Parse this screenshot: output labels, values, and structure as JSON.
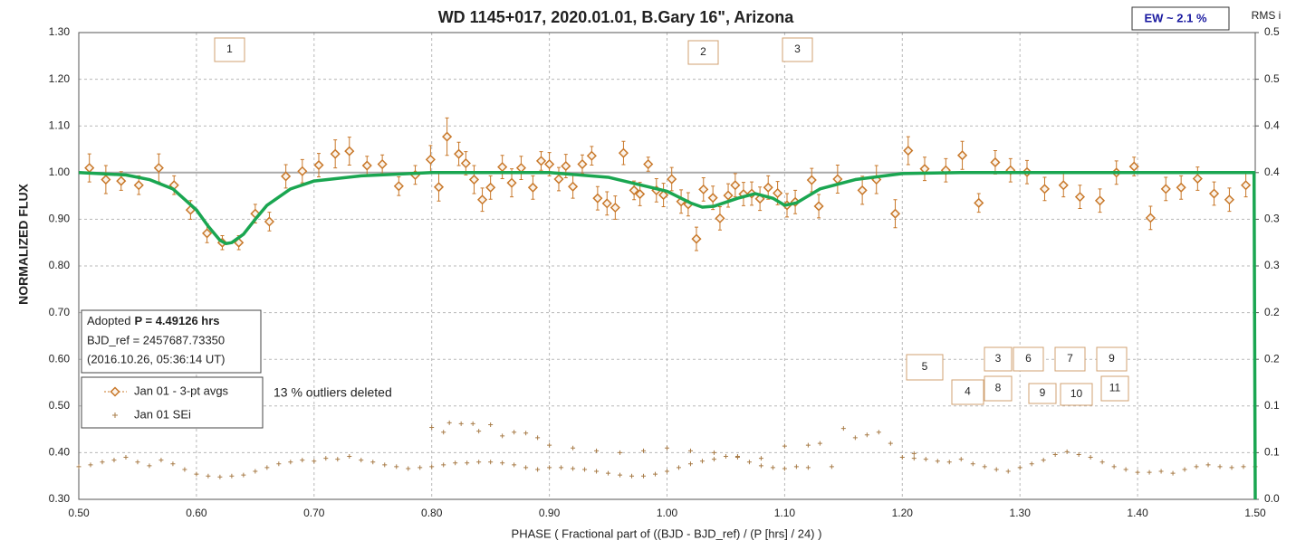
{
  "chart_data": {
    "type": "scatter",
    "title": "WD 1145+017, 2020.01.01, B.Gary 16\", Arizona",
    "x_label": "PHASE ( Fractional part of ((BJD - BJD_ref) / (P [hrs] / 24) )",
    "y_label": "NORMALIZED FLUX",
    "y2_label": "RMS i",
    "ew_label": "EW ~ 2.1 %",
    "info": {
      "prefix": "Adopted",
      "bold": "P = 4.49126 hrs",
      "line2": "BJD_ref = 2457687.73350",
      "line3": "(2016.10.26, 05:36:14 UT)"
    },
    "note": "13 % outliers deleted",
    "annotations": [
      "1",
      "2",
      "3",
      "5",
      "3",
      "6",
      "7",
      "9",
      "4",
      "8",
      "9",
      "10",
      "11"
    ],
    "xlim": [
      0.5,
      1.5
    ],
    "xticks": [
      {
        "value": 0.5,
        "label": "0.50"
      },
      {
        "value": 0.6,
        "label": "0.60"
      },
      {
        "value": 0.7,
        "label": "0.70"
      },
      {
        "value": 0.8,
        "label": "0.80"
      },
      {
        "value": 0.9,
        "label": "0.90"
      },
      {
        "value": 1.0,
        "label": "1.00"
      },
      {
        "value": 1.1,
        "label": "1.10"
      },
      {
        "value": 1.2,
        "label": "1.20"
      },
      {
        "value": 1.3,
        "label": "1.30"
      },
      {
        "value": 1.4,
        "label": "1.40"
      },
      {
        "value": 1.5,
        "label": "1.50"
      }
    ],
    "ylim": [
      0.3,
      1.3
    ],
    "yticks": [
      {
        "value": 0.3,
        "label": "0.30"
      },
      {
        "value": 0.4,
        "label": "0.40"
      },
      {
        "value": 0.5,
        "label": "0.50"
      },
      {
        "value": 0.6,
        "label": "0.60"
      },
      {
        "value": 0.7,
        "label": "0.70"
      },
      {
        "value": 0.8,
        "label": "0.80"
      },
      {
        "value": 0.9,
        "label": "0.90"
      },
      {
        "value": 1.0,
        "label": "1.00"
      },
      {
        "value": 1.1,
        "label": "1.10"
      },
      {
        "value": 1.2,
        "label": "1.20"
      },
      {
        "value": 1.3,
        "label": "1.30"
      }
    ],
    "y2lim": [
      0,
      0.5
    ],
    "y2ticks": [
      {
        "value": 0,
        "label": "0.0"
      },
      {
        "value": 0.05,
        "label": "0.1"
      },
      0.1,
      {
        "value": 0.15,
        "label": "0.2"
      },
      0.2,
      {
        "value": 0.25,
        "label": "0.3"
      },
      0.3,
      {
        "value": 0.35,
        "label": "0.4"
      },
      0.4,
      {
        "value": 0.45,
        "label": "0.5"
      },
      0.5
    ],
    "grid": true,
    "reference_y": 1.0,
    "series": [
      {
        "name": "Jan 01 - 3-pt avgs",
        "color": "#c8782a",
        "marker": "diamond",
        "x": [
          0.509,
          0.523,
          0.536,
          0.551,
          0.568,
          0.581,
          0.595,
          0.609,
          0.622,
          0.636,
          0.65,
          0.662,
          0.676,
          0.69,
          0.704,
          0.718,
          0.73,
          0.745,
          0.758,
          0.772,
          0.786,
          0.799,
          0.806,
          0.813,
          0.823,
          0.829,
          0.836,
          0.843,
          0.85,
          0.86,
          0.868,
          0.876,
          0.886,
          0.893,
          0.9,
          0.908,
          0.914,
          0.92,
          0.928,
          0.936,
          0.941,
          0.949,
          0.956,
          0.963,
          0.972,
          0.977,
          0.984,
          0.991,
          0.997,
          1.004,
          1.012,
          1.018,
          1.025,
          1.031,
          1.039,
          1.045,
          1.052,
          1.058,
          1.065,
          1.072,
          1.079,
          1.086,
          1.094,
          1.102,
          1.109,
          1.123,
          1.129,
          1.145,
          1.166,
          1.178,
          1.194,
          1.205,
          1.219,
          1.237,
          1.251,
          1.265,
          1.279,
          1.292,
          1.306,
          1.321,
          1.337,
          1.351,
          1.368,
          1.382,
          1.397,
          1.411,
          1.424,
          1.437,
          1.451,
          1.465,
          1.478,
          1.492
        ],
        "values": [
          1.01,
          0.985,
          0.982,
          0.973,
          1.01,
          0.973,
          0.92,
          0.87,
          0.85,
          0.85,
          0.912,
          0.895,
          0.992,
          1.003,
          1.016,
          1.04,
          1.046,
          1.015,
          1.018,
          0.971,
          0.995,
          1.028,
          0.969,
          1.077,
          1.04,
          1.02,
          0.985,
          0.942,
          0.968,
          1.012,
          0.978,
          1.01,
          0.968,
          1.025,
          1.018,
          0.986,
          1.014,
          0.97,
          1.018,
          1.036,
          0.945,
          0.934,
          0.925,
          1.042,
          0.962,
          0.954,
          1.018,
          0.962,
          0.952,
          0.986,
          0.938,
          0.932,
          0.858,
          0.964,
          0.946,
          0.902,
          0.951,
          0.973,
          0.954,
          0.955,
          0.944,
          0.968,
          0.956,
          0.93,
          0.937,
          0.984,
          0.928,
          0.986,
          0.962,
          0.985,
          0.912,
          1.047,
          1.008,
          1.005,
          1.037,
          0.935,
          1.022,
          1.005,
          1.001,
          0.965,
          0.973,
          0.948,
          0.94,
          1.0,
          1.013,
          0.903,
          0.965,
          0.968,
          0.987,
          0.955,
          0.942,
          0.973
        ],
        "errors": [
          0.03,
          0.03,
          0.02,
          0.02,
          0.03,
          0.02,
          0.02,
          0.02,
          0.015,
          0.015,
          0.02,
          0.02,
          0.025,
          0.025,
          0.025,
          0.03,
          0.03,
          0.02,
          0.02,
          0.02,
          0.02,
          0.03,
          0.03,
          0.04,
          0.025,
          0.025,
          0.03,
          0.025,
          0.025,
          0.025,
          0.03,
          0.025,
          0.025,
          0.02,
          0.025,
          0.025,
          0.025,
          0.025,
          0.02,
          0.02,
          0.025,
          0.025,
          0.025,
          0.025,
          0.02,
          0.025,
          0.015,
          0.025,
          0.025,
          0.025,
          0.025,
          0.025,
          0.025,
          0.025,
          0.025,
          0.025,
          0.025,
          0.025,
          0.025,
          0.025,
          0.025,
          0.025,
          0.025,
          0.025,
          0.025,
          0.025,
          0.025,
          0.03,
          0.03,
          0.03,
          0.03,
          0.03,
          0.025,
          0.025,
          0.03,
          0.02,
          0.025,
          0.025,
          0.025,
          0.025,
          0.025,
          0.025,
          0.025,
          0.025,
          0.02,
          0.025,
          0.025,
          0.025,
          0.025,
          0.025,
          0.025,
          0.025
        ]
      },
      {
        "name": "Jan 01 SEi",
        "color": "#a87c48",
        "marker": "plus",
        "axis": "y2",
        "x": [
          0.5,
          0.51,
          0.52,
          0.53,
          0.54,
          0.55,
          0.56,
          0.57,
          0.58,
          0.59,
          0.6,
          0.61,
          0.62,
          0.63,
          0.64,
          0.65,
          0.66,
          0.67,
          0.68,
          0.69,
          0.7,
          0.71,
          0.72,
          0.73,
          0.74,
          0.75,
          0.76,
          0.77,
          0.78,
          0.79,
          0.8,
          0.81,
          0.82,
          0.83,
          0.84,
          0.85,
          0.86,
          0.87,
          0.88,
          0.89,
          0.9,
          0.91,
          0.92,
          0.93,
          0.94,
          0.95,
          0.96,
          0.97,
          0.98,
          0.99,
          1.0,
          1.01,
          1.02,
          1.03,
          1.04,
          1.05,
          1.06,
          1.07,
          1.08,
          1.09,
          1.1,
          1.11,
          1.12,
          1.14,
          1.2,
          1.21,
          1.22,
          1.23,
          1.24,
          1.25,
          1.26,
          1.27,
          1.28,
          1.29,
          1.3,
          1.31,
          1.32,
          1.33,
          1.34,
          1.35,
          1.36,
          1.37,
          1.38,
          1.39,
          1.4,
          1.41,
          1.42,
          1.43,
          1.44,
          1.45,
          1.46,
          1.47,
          1.48,
          1.49,
          1.5,
          0.8,
          0.81,
          0.815,
          0.825,
          0.835,
          0.84,
          0.85,
          0.86,
          0.87,
          0.88,
          0.89,
          0.9,
          0.92,
          0.94,
          0.96,
          0.98,
          1.0,
          1.02,
          1.04,
          1.06,
          1.08,
          1.1,
          1.12,
          1.13,
          1.15,
          1.16,
          1.17,
          1.18,
          1.19,
          1.21
        ],
        "values": [
          0.035,
          0.037,
          0.04,
          0.042,
          0.045,
          0.04,
          0.036,
          0.042,
          0.038,
          0.032,
          0.027,
          0.025,
          0.024,
          0.025,
          0.026,
          0.03,
          0.034,
          0.038,
          0.04,
          0.042,
          0.041,
          0.044,
          0.043,
          0.046,
          0.042,
          0.04,
          0.037,
          0.035,
          0.033,
          0.034,
          0.035,
          0.037,
          0.039,
          0.039,
          0.04,
          0.04,
          0.039,
          0.037,
          0.034,
          0.032,
          0.034,
          0.034,
          0.033,
          0.032,
          0.03,
          0.028,
          0.026,
          0.025,
          0.025,
          0.027,
          0.03,
          0.034,
          0.038,
          0.041,
          0.043,
          0.046,
          0.045,
          0.04,
          0.036,
          0.034,
          0.033,
          0.035,
          0.034,
          0.035,
          0.045,
          0.044,
          0.043,
          0.041,
          0.04,
          0.043,
          0.038,
          0.035,
          0.032,
          0.03,
          0.034,
          0.038,
          0.042,
          0.048,
          0.051,
          0.048,
          0.045,
          0.04,
          0.035,
          0.032,
          0.029,
          0.029,
          0.03,
          0.028,
          0.032,
          0.035,
          0.037,
          0.035,
          0.034,
          0.035,
          0.035,
          0.077,
          0.072,
          0.082,
          0.081,
          0.081,
          0.073,
          0.08,
          0.068,
          0.072,
          0.071,
          0.066,
          0.058,
          0.055,
          0.052,
          0.05,
          0.052,
          0.055,
          0.052,
          0.05,
          0.046,
          0.044,
          0.057,
          0.058,
          0.06,
          0.076,
          0.066,
          0.069,
          0.072,
          0.06,
          0.049
        ]
      }
    ],
    "model": {
      "color": "#1aa651",
      "x": [
        0.5,
        0.54,
        0.56,
        0.58,
        0.6,
        0.61,
        0.62,
        0.625,
        0.63,
        0.64,
        0.65,
        0.66,
        0.68,
        0.7,
        0.74,
        0.8,
        0.9,
        0.95,
        1.0,
        1.02,
        1.03,
        1.04,
        1.06,
        1.075,
        1.09,
        1.1,
        1.11,
        1.13,
        1.16,
        1.2,
        1.25,
        1.499,
        1.5
      ],
      "values": [
        1.0,
        0.995,
        0.985,
        0.965,
        0.92,
        0.885,
        0.855,
        0.848,
        0.85,
        0.868,
        0.9,
        0.93,
        0.965,
        0.982,
        0.993,
        1.0,
        1.0,
        0.99,
        0.96,
        0.935,
        0.926,
        0.928,
        0.945,
        0.955,
        0.945,
        0.93,
        0.935,
        0.965,
        0.985,
        0.998,
        1.0,
        1.0,
        0.3
      ]
    }
  }
}
